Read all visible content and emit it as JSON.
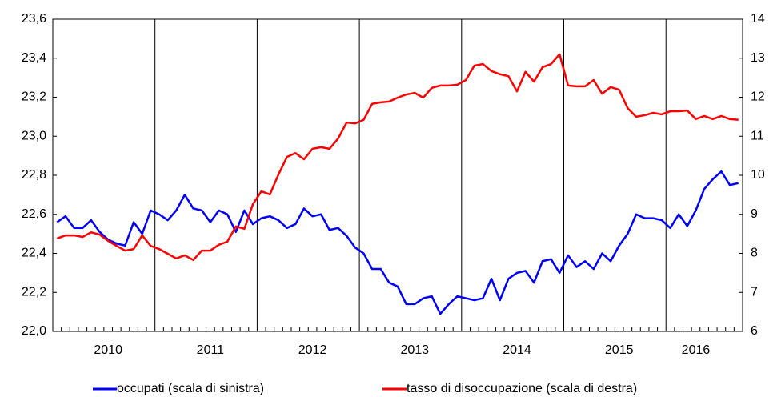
{
  "chart_data": {
    "type": "line",
    "categories": [
      null,
      null,
      null,
      null,
      null,
      null,
      "2010",
      null,
      null,
      null,
      null,
      null,
      null,
      null,
      null,
      null,
      null,
      null,
      "2011",
      null,
      null,
      null,
      null,
      null,
      null,
      null,
      null,
      null,
      null,
      null,
      "2012",
      null,
      null,
      null,
      null,
      null,
      null,
      null,
      null,
      null,
      null,
      null,
      "2013",
      null,
      null,
      null,
      null,
      null,
      null,
      null,
      null,
      null,
      null,
      null,
      "2014",
      null,
      null,
      null,
      null,
      null,
      null,
      null,
      null,
      null,
      null,
      null,
      "2015",
      null,
      null,
      null,
      null,
      null,
      null,
      null,
      null,
      "2016",
      null,
      null,
      null,
      null,
      null
    ],
    "series": [
      {
        "name": "occupati (scala di sinistra)",
        "color": "#0000ff",
        "axis": "y",
        "values": [
          22.56,
          22.59,
          22.53,
          22.53,
          22.57,
          22.51,
          22.47,
          22.45,
          22.44,
          22.56,
          22.5,
          22.62,
          22.6,
          22.57,
          22.62,
          22.7,
          22.63,
          22.62,
          22.56,
          22.62,
          22.6,
          22.51,
          22.62,
          22.55,
          22.58,
          22.59,
          22.57,
          22.53,
          22.55,
          22.63,
          22.59,
          22.6,
          22.52,
          22.53,
          22.49,
          22.43,
          22.4,
          22.32,
          22.32,
          22.25,
          22.23,
          22.14,
          22.14,
          22.17,
          22.18,
          22.09,
          22.14,
          22.18,
          22.17,
          22.16,
          22.17,
          22.27,
          22.16,
          22.27,
          22.3,
          22.31,
          22.25,
          22.36,
          22.37,
          22.3,
          22.39,
          22.33,
          22.36,
          22.32,
          22.4,
          22.36,
          22.44,
          22.5,
          22.6,
          22.58,
          22.58,
          22.57,
          22.53,
          22.6,
          22.54,
          22.62,
          22.73,
          22.78,
          22.82,
          22.75,
          22.76
        ]
      },
      {
        "name": "tasso di disoccupazione (scala di destra)",
        "color": "#ff0000",
        "axis": "y2",
        "values": [
          8.38,
          8.46,
          8.46,
          8.42,
          8.54,
          8.48,
          8.32,
          8.19,
          8.07,
          8.11,
          8.46,
          8.19,
          8.11,
          7.99,
          7.87,
          7.95,
          7.83,
          8.07,
          8.07,
          8.22,
          8.3,
          8.69,
          8.63,
          9.26,
          9.59,
          9.51,
          10.02,
          10.47,
          10.57,
          10.41,
          10.68,
          10.72,
          10.68,
          10.94,
          11.35,
          11.33,
          11.42,
          11.83,
          11.87,
          11.89,
          11.99,
          12.07,
          12.11,
          11.99,
          12.24,
          12.3,
          12.3,
          12.32,
          12.44,
          12.81,
          12.85,
          12.67,
          12.59,
          12.54,
          12.15,
          12.65,
          12.4,
          12.77,
          12.85,
          13.1,
          12.3,
          12.28,
          12.28,
          12.44,
          12.09,
          12.26,
          12.19,
          11.72,
          11.5,
          11.54,
          11.6,
          11.56,
          11.64,
          11.64,
          11.66,
          11.44,
          11.52,
          11.44,
          11.52,
          11.44,
          11.42
        ]
      }
    ],
    "ylim": [
      22.0,
      23.6
    ],
    "yticks": [
      {
        "value": 22.0,
        "label": "22,0"
      },
      {
        "value": 22.2,
        "label": "22,2"
      },
      {
        "value": 22.4,
        "label": "22,4"
      },
      {
        "value": 22.6,
        "label": "22,6"
      },
      {
        "value": 22.8,
        "label": "22,8"
      },
      {
        "value": 23.0,
        "label": "23,0"
      },
      {
        "value": 23.2,
        "label": "23,2"
      },
      {
        "value": 23.4,
        "label": "23,4"
      },
      {
        "value": 23.6,
        "label": "23,6"
      }
    ],
    "y2lim": [
      6,
      14
    ],
    "y2ticks": [
      6,
      7,
      8,
      9,
      10,
      11,
      12,
      13,
      14
    ],
    "legend": "bottom"
  }
}
